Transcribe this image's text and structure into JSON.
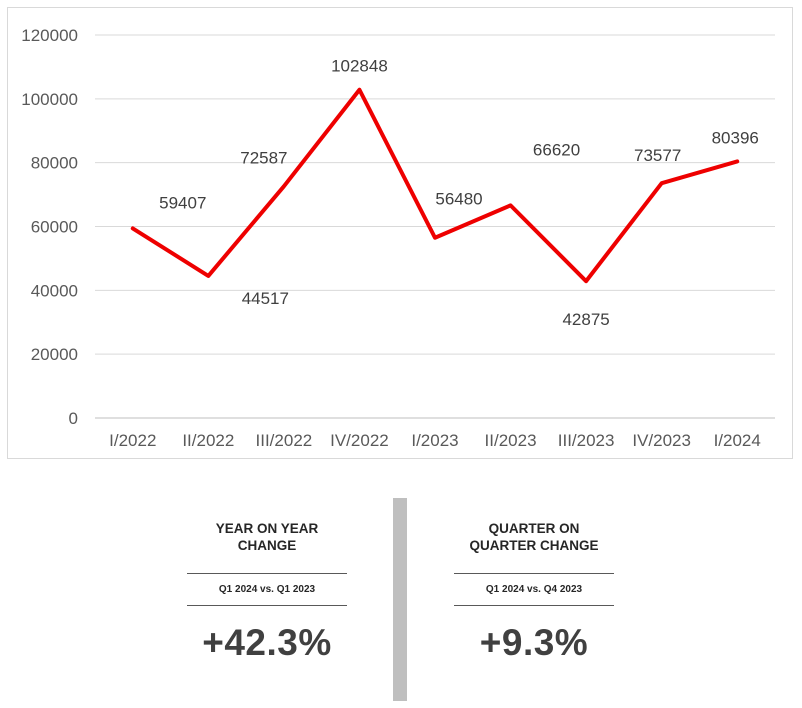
{
  "chart_data": {
    "type": "line",
    "categories": [
      "I/2022",
      "II/2022",
      "III/2022",
      "IV/2022",
      "I/2023",
      "II/2023",
      "III/2023",
      "IV/2023",
      "I/2024"
    ],
    "values": [
      59407,
      44517,
      72587,
      102848,
      56480,
      66620,
      42875,
      73577,
      80396
    ],
    "value_labels": [
      "59407",
      "44517",
      "72587",
      "102848",
      "56480",
      "66620",
      "42875",
      "73577",
      "80396"
    ],
    "ylim": [
      0,
      120000
    ],
    "yticks": [
      0,
      20000,
      40000,
      60000,
      80000,
      100000,
      120000
    ],
    "ytick_labels": [
      "0",
      "20000",
      "40000",
      "60000",
      "80000",
      "100000",
      "120000"
    ],
    "line_color": "#ee0000",
    "grid": true,
    "title": "",
    "xlabel": "",
    "ylabel": ""
  },
  "stats": {
    "yoy": {
      "title": "YEAR ON YEAR CHANGE",
      "comparison": "Q1 2024 vs. Q1 2023",
      "value": "+42.3%"
    },
    "qoq": {
      "title": "QUARTER ON QUARTER CHANGE",
      "comparison": "Q1 2024 vs. Q4 2023",
      "value": "+9.3%"
    }
  }
}
